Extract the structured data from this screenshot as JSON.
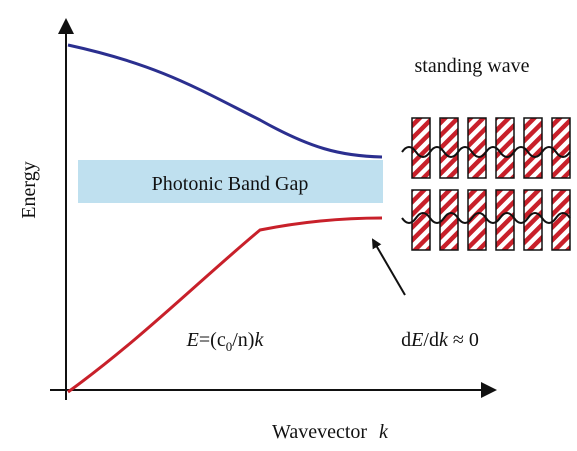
{
  "title_right": "standing wave",
  "y_axis_label": "Energy",
  "band_gap_label": "Photonic Band Gap",
  "dispersion_label": [
    "E",
    "=(c",
    "0",
    "/n)",
    "k"
  ],
  "slope_label": [
    "d",
    "E",
    "/d",
    "k",
    " ≈ 0"
  ],
  "x_axis_label": [
    "Wavevector",
    "k"
  ]
}
